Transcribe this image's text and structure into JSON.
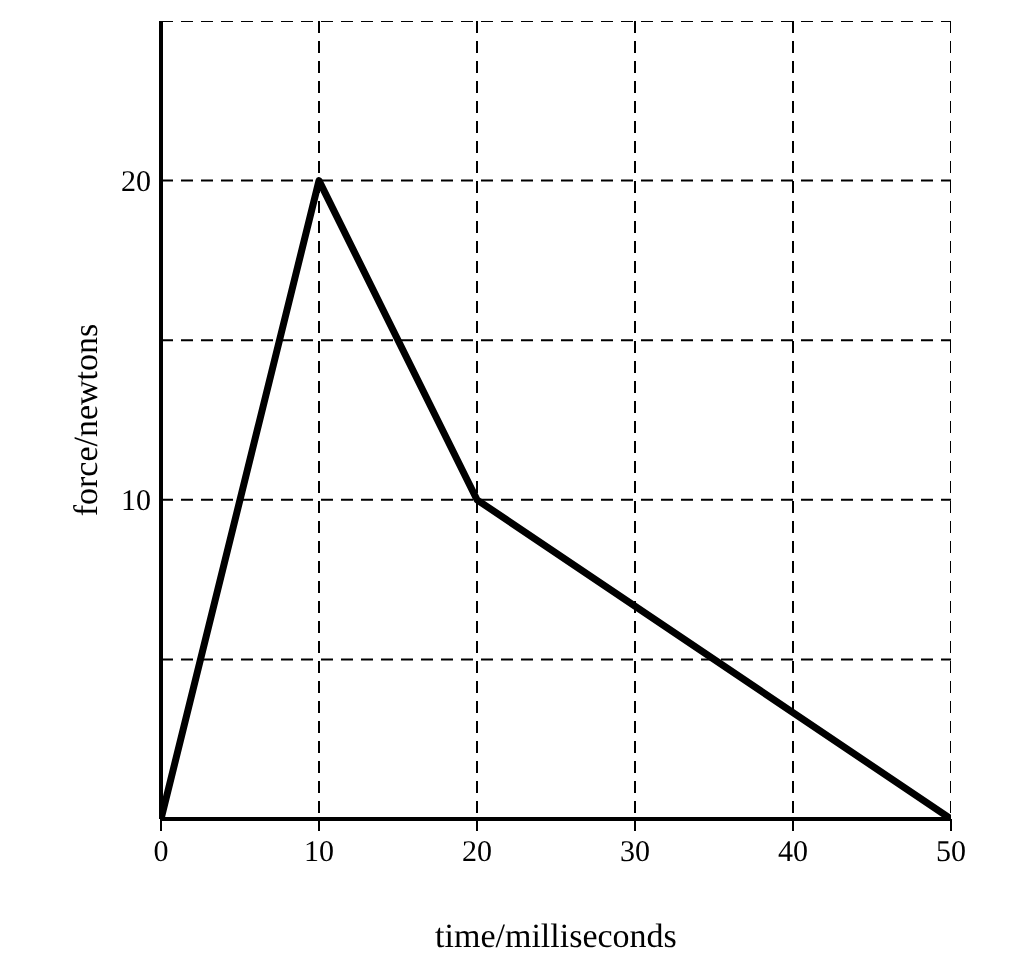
{
  "chart_data": {
    "type": "line",
    "xlabel": "time/milliseconds",
    "ylabel": "force/newtons",
    "x": [
      0,
      10,
      20,
      50
    ],
    "series": [
      {
        "color": "#000000",
        "values": [
          0,
          20,
          10,
          0
        ]
      }
    ],
    "xlim": [
      0,
      50
    ],
    "ylim": [
      0,
      25
    ],
    "xticks": [
      0,
      10,
      20,
      30,
      40,
      50
    ],
    "yticks": [
      {
        "value": 5,
        "label": null
      },
      10,
      {
        "value": 15,
        "label": null
      },
      20,
      {
        "value": 25,
        "label": null
      }
    ],
    "grid": true,
    "marker": "none",
    "line_style": "solid"
  }
}
